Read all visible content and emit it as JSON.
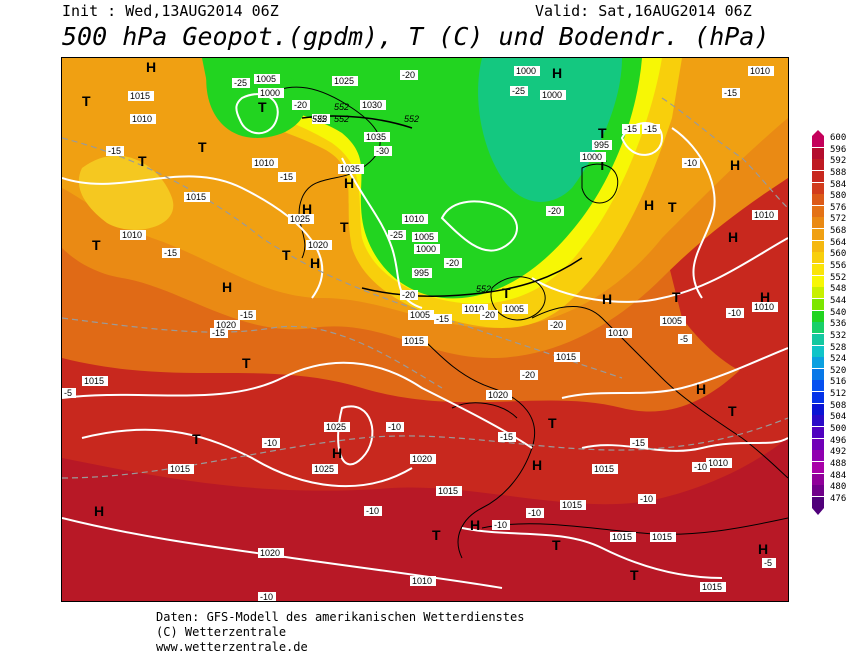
{
  "header": {
    "init": "Init : Wed,13AUG2014 06Z",
    "valid": "Valid: Sat,16AUG2014 06Z",
    "title": "500 hPa Geopot.(gpdm), T (C) und Bodendr. (hPa)"
  },
  "footer": {
    "line1": "Daten: GFS-Modell des amerikanischen Wetterdienstes",
    "line2": "(C) Wetterzentrale",
    "line3": "www.wetterzentrale.de"
  },
  "colorbar": {
    "levels": [
      "600",
      "596",
      "592",
      "588",
      "584",
      "580",
      "576",
      "572",
      "568",
      "564",
      "560",
      "556",
      "552",
      "548",
      "544",
      "540",
      "536",
      "532",
      "528",
      "524",
      "520",
      "516",
      "512",
      "508",
      "504",
      "500",
      "496",
      "492",
      "488",
      "484",
      "480",
      "476"
    ],
    "colors": [
      "#c4005a",
      "#b40d2d",
      "#bf1a22",
      "#c8281e",
      "#d23c1c",
      "#dc5a18",
      "#e47216",
      "#ea8a14",
      "#f0a012",
      "#f5b80f",
      "#f8cf0c",
      "#fae40a",
      "#f7f705",
      "#c8f000",
      "#7ce600",
      "#22d420",
      "#18d06a",
      "#14c8a0",
      "#10c4c8",
      "#0ca0e0",
      "#0878e8",
      "#0650f0",
      "#0432e8",
      "#0a14d4",
      "#2a0ac8",
      "#5000c0",
      "#7000b8",
      "#9000b0",
      "#a800a8",
      "#90009a",
      "#70008a",
      "#50007a"
    ]
  },
  "map_labels": {
    "highs": [
      "H",
      "H",
      "H",
      "H",
      "H",
      "H",
      "H",
      "H",
      "H",
      "H",
      "H",
      "H",
      "H",
      "H",
      "H",
      "H",
      "H",
      "H",
      "H",
      "H",
      "H"
    ],
    "lows": [
      "T",
      "T",
      "T",
      "T",
      "T",
      "T",
      "T",
      "T",
      "T",
      "T",
      "T",
      "T",
      "T",
      "T",
      "T",
      "T",
      "T",
      "T",
      "T",
      "T",
      "T"
    ],
    "pressure_labels": [
      "1015",
      "1010",
      "1005",
      "1000",
      "1025",
      "1030",
      "1035",
      "1010",
      "1035",
      "1025",
      "1020",
      "1010",
      "1005",
      "1000",
      "995",
      "1010",
      "1005",
      "1015",
      "1010",
      "1020",
      "1015",
      "1010",
      "1025",
      "1020",
      "1015",
      "1015",
      "1015",
      "1025",
      "1015",
      "1010",
      "1015",
      "1015",
      "1020",
      "1010",
      "1015",
      "1010",
      "1000",
      "1000",
      "1010",
      "1005",
      "1010",
      "995",
      "1000",
      "1005",
      "1010"
    ],
    "temp_labels": [
      "-25",
      "-20",
      "-20",
      "-25",
      "-20",
      "-15",
      "-30",
      "-15",
      "-25",
      "-20",
      "-15",
      "-20",
      "-15",
      "-15",
      "-20",
      "-20",
      "-15",
      "-15",
      "-10",
      "-10",
      "-10",
      "-10",
      "-10",
      "-10",
      "-15",
      "-10",
      "-5",
      "-15",
      "-10",
      "-15",
      "-5",
      "-10",
      "-5",
      "-10",
      "-20",
      "-25",
      "-15"
    ],
    "geopot_labels": [
      "552",
      "552",
      "552",
      "552",
      "552"
    ]
  }
}
